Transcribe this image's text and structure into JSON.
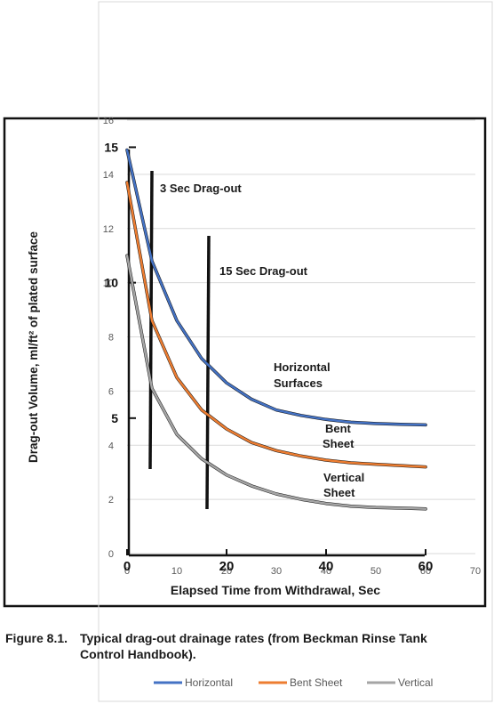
{
  "chart_data": {
    "type": "line",
    "xlabel": "Elapsed Time from Withdrawal, Sec",
    "ylabel": "Drag-out Volume, ml/ft² of plated surface",
    "xlim": [
      0,
      70
    ],
    "ylim": [
      0,
      16
    ],
    "grid": true,
    "legend": "bottom",
    "excel_x_ticks": [
      "0",
      "10",
      "20",
      "30",
      "40",
      "50",
      "60",
      "70"
    ],
    "excel_y_ticks": [
      "0",
      "2",
      "4",
      "6",
      "8",
      "10",
      "12",
      "14",
      "16"
    ],
    "orig_x_ticks": [
      "0",
      "20",
      "40",
      "60"
    ],
    "orig_y_ticks": [
      "5",
      "10",
      "15"
    ],
    "caption": {
      "label": "Figure 8.1.",
      "line1": "Typical drag-out drainage rates (from Beckman Rinse Tank",
      "line2": "Control Handbook)."
    },
    "annotations": {
      "sec3": "3 Sec Drag-out",
      "sec15": "15 Sec Drag-out",
      "horizontal_1": "Horizontal",
      "horizontal_2": "Surfaces",
      "bent_1": "Bent",
      "bent_2": "Sheet",
      "vertical_1": "Vertical",
      "vertical_2": "Sheet"
    },
    "x": [
      0,
      5,
      10,
      15,
      20,
      25,
      30,
      35,
      40,
      45,
      50,
      55,
      60
    ],
    "series": [
      {
        "name": "Horizontal",
        "color": "#4472C4",
        "values": [
          14.9,
          10.8,
          8.6,
          7.2,
          6.3,
          5.7,
          5.3,
          5.1,
          4.95,
          4.85,
          4.8,
          4.77,
          4.75
        ]
      },
      {
        "name": "Bent Sheet",
        "color": "#ED7D31",
        "values": [
          13.7,
          8.6,
          6.5,
          5.3,
          4.6,
          4.1,
          3.8,
          3.6,
          3.45,
          3.35,
          3.3,
          3.25,
          3.2
        ]
      },
      {
        "name": "Vertical",
        "color": "#A5A5A5",
        "values": [
          11.0,
          6.1,
          4.4,
          3.5,
          2.9,
          2.5,
          2.2,
          2.0,
          1.85,
          1.75,
          1.7,
          1.68,
          1.65
        ]
      }
    ]
  }
}
